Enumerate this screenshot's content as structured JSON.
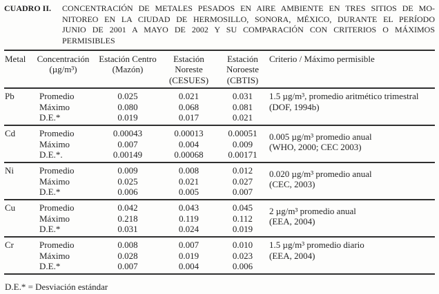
{
  "title": {
    "label": "CUADRO II.",
    "caption_lines": [
      "CONCENTRACIÓN DE METALES PESADOS EN AIRE AMBIENTE EN TRES SITIOS DE MO-",
      "NITOREO EN LA CIUDAD DE HERMOSILLO, SONORA, MÉXICO, DURANTE EL PERÍODO",
      "JUNIO DE 2001 A MAYO DE 2002 Y SU COMPARACIÓN CON CRITERIOS O MÁXIMOS",
      "PERMISIBLES"
    ]
  },
  "table": {
    "columns": [
      {
        "lines": [
          "Metal"
        ]
      },
      {
        "lines": [
          "Concentración",
          "(µg/m³)"
        ]
      },
      {
        "lines": [
          "Estación Centro",
          "(Mazón)"
        ]
      },
      {
        "lines": [
          "Estación",
          "Noreste",
          "(CESUES)"
        ]
      },
      {
        "lines": [
          "Estación",
          "Noroeste",
          "(CBTIS)"
        ]
      },
      {
        "lines": [
          "Criterio / Máximo permisible"
        ]
      }
    ],
    "groups": [
      {
        "metal": "Pb",
        "rows": [
          {
            "label": "Promedio",
            "values": [
              "0.025",
              "0.021",
              "0.031"
            ]
          },
          {
            "label": "Máximo",
            "values": [
              "0.080",
              "0.068",
              "0.081"
            ]
          },
          {
            "label": "D.E.*",
            "values": [
              "0.019",
              "0.017",
              "0.021"
            ]
          }
        ],
        "criterio": [
          "1.5 µg/m³, promedio aritmético trimestral",
          "(DOF, 1994b)"
        ]
      },
      {
        "metal": "Cd",
        "rows": [
          {
            "label": "Promedio",
            "values": [
              "0.00043",
              "0.00013",
              "0.00051"
            ]
          },
          {
            "label": "Máximo",
            "values": [
              "0.007",
              "0.004",
              "0.009"
            ]
          },
          {
            "label": "D.E.*.",
            "values": [
              "0.00149",
              "0.00068",
              "0.00171"
            ]
          }
        ],
        "criterio": [
          "0.005 µg/m³ promedio anual",
          "(WHO, 2000; CEC 2003)"
        ]
      },
      {
        "metal": "Ni",
        "rows": [
          {
            "label": "Promedio",
            "values": [
              "0.009",
              "0.008",
              "0.012"
            ]
          },
          {
            "label": "Máximo",
            "values": [
              "0.025",
              "0.021",
              "0.027"
            ]
          },
          {
            "label": "D.E.*",
            "values": [
              "0.006",
              "0.005",
              "0.007"
            ]
          }
        ],
        "criterio": [
          "0.020 µg/m³ promedio anual",
          "(CEC, 2003)"
        ]
      },
      {
        "metal": "Cu",
        "rows": [
          {
            "label": "Promedio",
            "values": [
              "0.042",
              "0.043",
              "0.045"
            ]
          },
          {
            "label": "Máximo",
            "values": [
              "0.218",
              "0.119",
              "0.112"
            ]
          },
          {
            "label": "D.E.*",
            "values": [
              "0.031",
              "0.024",
              "0.019"
            ]
          }
        ],
        "criterio": [
          "2 µg/m³ promedio anual",
          "(EEA, 2004)"
        ]
      },
      {
        "metal": "Cr",
        "rows": [
          {
            "label": "Promedio",
            "values": [
              "0.008",
              "0.007",
              "0.010"
            ]
          },
          {
            "label": "Máximo",
            "values": [
              "0.028",
              "0.019",
              "0.023"
            ]
          },
          {
            "label": "D.E.*",
            "values": [
              "0.007",
              "0.004",
              "0.006"
            ]
          }
        ],
        "criterio": [
          "1.5 µg/m³ promedio diario",
          "(EEA, 2004)"
        ]
      }
    ]
  },
  "footnote": "D.E.* = Desviación estándar"
}
